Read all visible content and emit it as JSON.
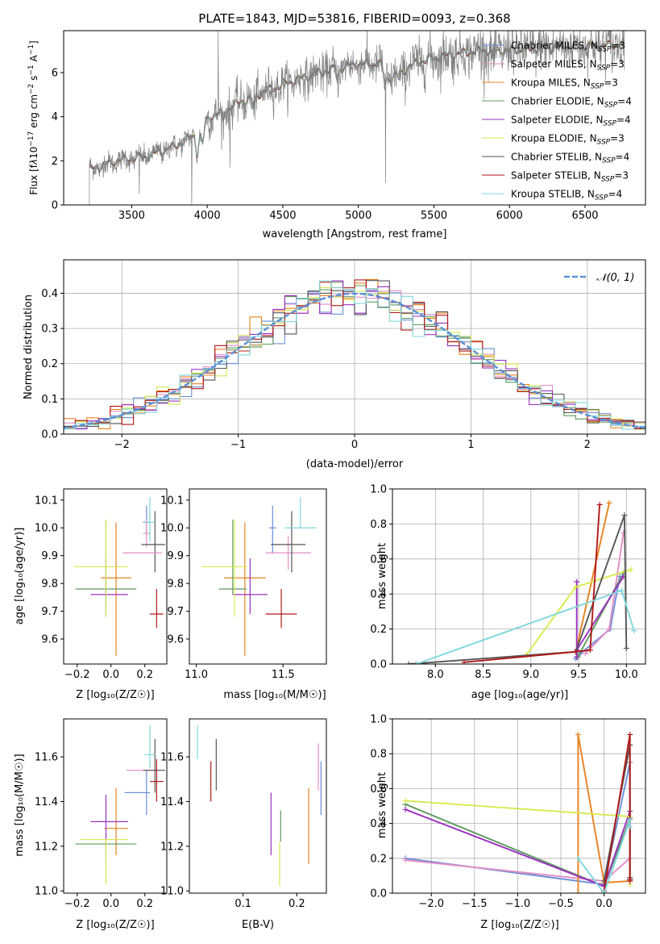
{
  "colors": {
    "Chabrier MILES": "#6a8fd8",
    "Salpeter MILES": "#e28ec6",
    "Kroupa MILES": "#e8821e",
    "Chabrier ELODIE": "#5f9a5f",
    "Salpeter ELODIE": "#9b30c0",
    "Kroupa ELODIE": "#d7ea4e",
    "Chabrier STELIB": "#555555",
    "Salpeter STELIB": "#b01818",
    "Kroupa STELIB": "#7fd7dc",
    "gaussian": "#5b8fd6",
    "data": "#808080"
  },
  "chart_data": [
    {
      "id": "spectrum",
      "type": "line",
      "title": "PLATE=1843, MJD=53816, FIBERID=0093, z=0.368",
      "xlabel": "wavelength [Angstrom, rest frame]",
      "ylabel_html": "Flux [f<tspan font-style='italic'>λ</tspan>10<tspan dy='-5' font-size='9'>−17</tspan><tspan dy='5'> erg cm</tspan><tspan dy='-5' font-size='9'>−2</tspan><tspan dy='5'> s</tspan><tspan dy='-5' font-size='9'>−1</tspan><tspan dy='5'> A</tspan><tspan dy='-5' font-size='9'>−1</tspan><tspan dy='5'>]</tspan>",
      "xlim": [
        3050,
        6900
      ],
      "ylim": [
        0,
        7.9
      ],
      "xticks": [
        3500,
        4000,
        4500,
        5000,
        5500,
        6000,
        6500
      ],
      "yticks": [
        0,
        2,
        4,
        6
      ],
      "legend": [
        {
          "label": "Chabrier MILES",
          "nssp": "3"
        },
        {
          "label": "Salpeter MILES",
          "nssp": "3"
        },
        {
          "label": "Kroupa MILES",
          "nssp": "3"
        },
        {
          "label": "Chabrier ELODIE",
          "nssp": "4"
        },
        {
          "label": "Salpeter ELODIE",
          "nssp": "4"
        },
        {
          "label": "Kroupa ELODIE",
          "nssp": "3"
        },
        {
          "label": "Chabrier STELIB",
          "nssp": "4"
        },
        {
          "label": "Salpeter STELIB",
          "nssp": "3"
        },
        {
          "label": "Kroupa STELIB",
          "nssp": "4"
        }
      ],
      "nssp_prefix": "N",
      "nssp_sub": "SSP",
      "continuum": [
        [
          3220,
          1.6
        ],
        [
          3400,
          2.0
        ],
        [
          3600,
          2.2
        ],
        [
          3800,
          2.7
        ],
        [
          3950,
          3.3
        ],
        [
          4000,
          3.9
        ],
        [
          4200,
          4.6
        ],
        [
          4400,
          5.2
        ],
        [
          4600,
          5.7
        ],
        [
          4800,
          6.1
        ],
        [
          5000,
          6.4
        ],
        [
          5150,
          6.4
        ],
        [
          5200,
          5.7
        ],
        [
          5400,
          6.5
        ],
        [
          5600,
          6.8
        ],
        [
          5800,
          7.0
        ],
        [
          6000,
          7.0
        ],
        [
          6200,
          7.1
        ],
        [
          6400,
          7.2
        ],
        [
          6600,
          7.2
        ],
        [
          6750,
          7.3
        ]
      ]
    },
    {
      "id": "residuals",
      "type": "histogram",
      "xlabel": "(data-model)/error",
      "ylabel": "Normed distribution",
      "xlim": [
        -2.5,
        2.5
      ],
      "ylim": [
        0,
        0.495
      ],
      "xticks": [
        -2,
        -1,
        0,
        1,
        2
      ],
      "yticks": [
        0.0,
        0.1,
        0.2,
        0.3,
        0.4
      ],
      "grid": true,
      "legend": [
        "𝒩(0, 1)"
      ],
      "gaussian": {
        "mean": 0,
        "sigma": 1
      }
    },
    {
      "id": "age_vs_Z",
      "type": "errorbar",
      "xlabel": "Z [log₁₀(Z/Z☉)]",
      "ylabel": "age  [log₁₀(age/yr)]",
      "xlim": [
        -0.28,
        0.33
      ],
      "ylim": [
        9.51,
        10.14
      ],
      "xticks": [
        -0.2,
        0.0,
        0.2
      ],
      "yticks": [
        9.6,
        9.7,
        9.8,
        9.9,
        10.0,
        10.1
      ],
      "points": [
        {
          "model": "Chabrier MILES",
          "x": 0.21,
          "xerr": [
            0.02,
            0.02
          ],
          "y": 10.02,
          "yerr": [
            0.05,
            0.06
          ]
        },
        {
          "model": "Salpeter MILES",
          "x": 0.21,
          "xerr": [
            0.02,
            0.02
          ],
          "y": 9.98,
          "yerr": [
            0.05,
            0.05
          ]
        },
        {
          "model": "Kroupa MILES",
          "x": 0.03,
          "xerr": [
            0.09,
            0.09
          ],
          "y": 9.82,
          "yerr": [
            0.28,
            0.2
          ]
        },
        {
          "model": "Chabrier ELODIE",
          "x": -0.03,
          "xerr": [
            0.18,
            0.18
          ],
          "y": 9.78,
          "yerr": [
            0.1,
            0.25
          ]
        },
        {
          "model": "Salpeter ELODIE",
          "x": -0.03,
          "xerr": [
            0.09,
            0.13
          ],
          "y": 9.76,
          "yerr": [
            0.07,
            0.13
          ]
        },
        {
          "model": "Kroupa ELODIE",
          "x": -0.03,
          "xerr": [
            0.19,
            0.13
          ],
          "y": 9.86,
          "yerr": [
            0.18,
            0.17
          ]
        },
        {
          "model": "Chabrier STELIB",
          "x": 0.26,
          "xerr": [
            0.08,
            0.06
          ],
          "y": 9.94,
          "yerr": [
            0.1,
            0.12
          ]
        },
        {
          "model": "Salpeter STELIB",
          "x": 0.27,
          "xerr": [
            0.04,
            0.04
          ],
          "y": 9.69,
          "yerr": [
            0.05,
            0.09
          ]
        },
        {
          "model": "Kroupa STELIB",
          "x": 0.23,
          "xerr": [
            0.03,
            0.03
          ],
          "y": 10.02,
          "yerr": [
            0.07,
            0.09
          ]
        },
        {
          "model": "Salpeter MILES",
          "x": 0.2,
          "xerr": [
            0.13,
            0.1
          ],
          "y": 9.91,
          "yerr": [
            0.0,
            0.0
          ]
        }
      ]
    },
    {
      "id": "age_vs_mass",
      "type": "errorbar",
      "xlabel": "mass [log₁₀(M/M☉)]",
      "ylabel": "",
      "xlim": [
        10.96,
        11.75
      ],
      "ylim": [
        9.51,
        10.14
      ],
      "xticks": [
        11.0,
        11.5
      ],
      "yticks": [
        9.6,
        9.7,
        9.8,
        9.9,
        10.0,
        10.1
      ],
      "points": [
        {
          "model": "Chabrier MILES",
          "x": 11.44,
          "xerr": [
            0.02,
            0.02
          ],
          "y": 10.0,
          "yerr": [
            0.09,
            0.08
          ]
        },
        {
          "model": "Salpeter MILES",
          "x": 11.53,
          "xerr": [
            0.13,
            0.13
          ],
          "y": 9.91,
          "yerr": [
            0.06,
            0.06
          ]
        },
        {
          "model": "Kroupa MILES",
          "x": 11.28,
          "xerr": [
            0.12,
            0.12
          ],
          "y": 9.82,
          "yerr": [
            0.28,
            0.2
          ]
        },
        {
          "model": "Chabrier ELODIE",
          "x": 11.21,
          "xerr": [
            0.08,
            0.08
          ],
          "y": 9.78,
          "yerr": [
            0.02,
            0.25
          ]
        },
        {
          "model": "Salpeter ELODIE",
          "x": 11.31,
          "xerr": [
            0.1,
            0.1
          ],
          "y": 9.76,
          "yerr": [
            0.07,
            0.13
          ]
        },
        {
          "model": "Kroupa ELODIE",
          "x": 11.22,
          "xerr": [
            0.19,
            0.07
          ],
          "y": 9.86,
          "yerr": [
            0.18,
            0.17
          ]
        },
        {
          "model": "Chabrier STELIB",
          "x": 11.55,
          "xerr": [
            0.12,
            0.08
          ],
          "y": 9.94,
          "yerr": [
            0.1,
            0.12
          ]
        },
        {
          "model": "Salpeter STELIB",
          "x": 11.49,
          "xerr": [
            0.09,
            0.09
          ],
          "y": 9.69,
          "yerr": [
            0.05,
            0.09
          ]
        },
        {
          "model": "Kroupa STELIB",
          "x": 11.6,
          "xerr": [
            0.09,
            0.09
          ],
          "y": 10.0,
          "yerr": [
            0.0,
            0.11
          ]
        }
      ]
    },
    {
      "id": "weight_vs_age",
      "type": "line",
      "xlabel": "age  [log₁₀(age/yr)]",
      "ylabel": "mass weight",
      "xlim": [
        7.55,
        10.2
      ],
      "ylim": [
        0,
        1.0
      ],
      "xticks": [
        8.0,
        8.5,
        9.0,
        9.5,
        10.0
      ],
      "yticks": [
        0.0,
        0.2,
        0.4,
        0.6,
        0.8,
        1.0
      ],
      "grid": true,
      "series": [
        {
          "model": "Chabrier MILES",
          "x": [
            9.47,
            9.52,
            9.83,
            9.93
          ],
          "y": [
            0.03,
            0.06,
            0.2,
            0.5
          ]
        },
        {
          "model": "Salpeter MILES",
          "x": [
            9.57,
            9.82,
            9.97
          ],
          "y": [
            0.06,
            0.2,
            0.75
          ]
        },
        {
          "model": "Kroupa MILES",
          "x": [
            9.47,
            9.82
          ],
          "y": [
            0.07,
            0.92
          ]
        },
        {
          "model": "Chabrier ELODIE",
          "x": [
            9.49,
            9.97
          ],
          "y": [
            0.04,
            0.52
          ]
        },
        {
          "model": "Salpeter ELODIE",
          "x": [
            9.48,
            9.48,
            9.48,
            9.97
          ],
          "y": [
            0.47,
            0.04,
            0.08,
            0.5
          ]
        },
        {
          "model": "Kroupa ELODIE",
          "x": [
            8.95,
            9.47,
            10.05
          ],
          "y": [
            0.05,
            0.44,
            0.54
          ]
        },
        {
          "model": "Chabrier STELIB",
          "x": [
            7.72,
            9.47,
            9.98,
            10.0
          ],
          "y": [
            0.0,
            0.07,
            0.85,
            0.09
          ]
        },
        {
          "model": "Salpeter STELIB",
          "x": [
            8.3,
            9.47,
            9.62,
            9.72
          ],
          "y": [
            0.01,
            0.07,
            0.08,
            0.91
          ]
        },
        {
          "model": "Kroupa STELIB",
          "x": [
            7.8,
            9.95,
            10.08
          ],
          "y": [
            0.0,
            0.42,
            0.19
          ]
        }
      ]
    },
    {
      "id": "mass_vs_Z",
      "type": "errorbar",
      "xlabel": "Z [log₁₀(Z/Z☉)]",
      "ylabel": "mass [log₁₀(M/M☉)]",
      "xlim": [
        -0.28,
        0.33
      ],
      "ylim": [
        10.99,
        11.77
      ],
      "xticks": [
        -0.2,
        0.0,
        0.2
      ],
      "yticks": [
        11.0,
        11.2,
        11.4,
        11.6
      ],
      "points": [
        {
          "model": "Chabrier MILES",
          "x": 0.21,
          "xerr": [
            0.13,
            0.02
          ],
          "y": 11.44,
          "yerr": [
            0.1,
            0.1
          ]
        },
        {
          "model": "Salpeter MILES",
          "x": 0.19,
          "xerr": [
            0.1,
            0.11
          ],
          "y": 11.54,
          "yerr": [
            0.0,
            0.0
          ]
        },
        {
          "model": "Kroupa MILES",
          "x": 0.03,
          "xerr": [
            0.07,
            0.07
          ],
          "y": 11.28,
          "yerr": [
            0.12,
            0.18
          ]
        },
        {
          "model": "Chabrier ELODIE",
          "x": -0.03,
          "xerr": [
            0.18,
            0.18
          ],
          "y": 11.21,
          "yerr": [
            0.0,
            0.0
          ]
        },
        {
          "model": "Salpeter ELODIE",
          "x": -0.03,
          "xerr": [
            0.09,
            0.13
          ],
          "y": 11.31,
          "yerr": [
            0.18,
            0.12
          ]
        },
        {
          "model": "Kroupa ELODIE",
          "x": -0.03,
          "xerr": [
            0.15,
            0.13
          ],
          "y": 11.23,
          "yerr": [
            0.2,
            0.0
          ]
        },
        {
          "model": "Chabrier STELIB",
          "x": 0.26,
          "xerr": [
            0.07,
            0.06
          ],
          "y": 11.54,
          "yerr": [
            0.1,
            0.14
          ]
        },
        {
          "model": "Salpeter STELIB",
          "x": 0.27,
          "xerr": [
            0.04,
            0.04
          ],
          "y": 11.49,
          "yerr": [
            0.09,
            0.1
          ]
        },
        {
          "model": "Kroupa STELIB",
          "x": 0.23,
          "xerr": [
            0.03,
            0.03
          ],
          "y": 11.61,
          "yerr": [
            0.06,
            0.13
          ]
        }
      ]
    },
    {
      "id": "mass_vs_ebv",
      "type": "errorbar",
      "xlabel": "E(B-V)",
      "ylabel": "",
      "xlim": [
        0.0,
        0.255
      ],
      "ylim": [
        10.99,
        11.77
      ],
      "xticks": [
        0.1,
        0.2
      ],
      "yticks": [
        11.0,
        11.2,
        11.4,
        11.6
      ],
      "points": [
        {
          "model": "Chabrier MILES",
          "x": 0.245,
          "xerr": [
            0.0,
            0.0
          ],
          "y": 11.44,
          "yerr": [
            0.1,
            0.14
          ]
        },
        {
          "model": "Salpeter MILES",
          "x": 0.24,
          "xerr": [
            0.0,
            0.0
          ],
          "y": 11.53,
          "yerr": [
            0.08,
            0.13
          ]
        },
        {
          "model": "Kroupa MILES",
          "x": 0.222,
          "xerr": [
            0.0,
            0.0
          ],
          "y": 11.29,
          "yerr": [
            0.17,
            0.17
          ]
        },
        {
          "model": "Chabrier ELODIE",
          "x": 0.17,
          "xerr": [
            0.0,
            0.0
          ],
          "y": 11.28,
          "yerr": [
            0.06,
            0.08
          ]
        },
        {
          "model": "Salpeter ELODIE",
          "x": 0.152,
          "xerr": [
            0.0,
            0.0
          ],
          "y": 11.3,
          "yerr": [
            0.14,
            0.14
          ]
        },
        {
          "model": "Kroupa ELODIE",
          "x": 0.168,
          "xerr": [
            0.0,
            0.0
          ],
          "y": 11.22,
          "yerr": [
            0.2,
            0.0
          ]
        },
        {
          "model": "Chabrier STELIB",
          "x": 0.05,
          "xerr": [
            0.0,
            0.0
          ],
          "y": 11.57,
          "yerr": [
            0.12,
            0.11
          ]
        },
        {
          "model": "Salpeter STELIB",
          "x": 0.04,
          "xerr": [
            0.0,
            0.0
          ],
          "y": 11.49,
          "yerr": [
            0.09,
            0.09
          ]
        },
        {
          "model": "Kroupa STELIB",
          "x": 0.015,
          "xerr": [
            0.0,
            0.0
          ],
          "y": 11.65,
          "yerr": [
            0.06,
            0.09
          ]
        }
      ]
    },
    {
      "id": "weight_vs_Z",
      "type": "line",
      "xlabel": "Z [log₁₀(Z/Z☉)]",
      "ylabel": "mass weight",
      "xlim": [
        -2.45,
        0.48
      ],
      "ylim": [
        0,
        1.0
      ],
      "xticks": [
        -2.0,
        -1.5,
        -1.0,
        -0.5,
        0.0
      ],
      "yticks": [
        0.0,
        0.2,
        0.4,
        0.6,
        0.8,
        1.0
      ],
      "grid": true,
      "series": [
        {
          "model": "Chabrier MILES",
          "x": [
            -2.3,
            0.0,
            0.3
          ],
          "y": [
            0.2,
            0.05,
            0.75
          ]
        },
        {
          "model": "Salpeter MILES",
          "x": [
            -2.3,
            0.0,
            0.3,
            0.3
          ],
          "y": [
            0.19,
            0.07,
            0.2,
            0.75
          ]
        },
        {
          "model": "Kroupa MILES",
          "x": [
            -0.3,
            -0.3,
            0.0,
            0.3
          ],
          "y": [
            0.0,
            0.91,
            0.06,
            0.07
          ]
        },
        {
          "model": "Chabrier ELODIE",
          "x": [
            -2.3,
            0.0,
            0.3
          ],
          "y": [
            0.51,
            0.04,
            0.43
          ]
        },
        {
          "model": "Salpeter ELODIE",
          "x": [
            -2.3,
            0.0,
            0.3,
            0.3
          ],
          "y": [
            0.48,
            0.04,
            0.47,
            0.08
          ]
        },
        {
          "model": "Kroupa ELODIE",
          "x": [
            -2.3,
            0.3,
            0.3
          ],
          "y": [
            0.53,
            0.44,
            0.05
          ]
        },
        {
          "model": "Chabrier STELIB",
          "x": [
            0.0,
            0.3,
            0.3
          ],
          "y": [
            0.07,
            0.85,
            0.09
          ]
        },
        {
          "model": "Salpeter STELIB",
          "x": [
            0.0,
            0.3,
            0.3,
            0.3
          ],
          "y": [
            0.01,
            0.91,
            0.07,
            0.08
          ]
        },
        {
          "model": "Kroupa STELIB",
          "x": [
            -0.3,
            0.0,
            0.3,
            0.3
          ],
          "y": [
            0.2,
            0.0,
            0.42,
            0.38
          ]
        }
      ]
    }
  ]
}
